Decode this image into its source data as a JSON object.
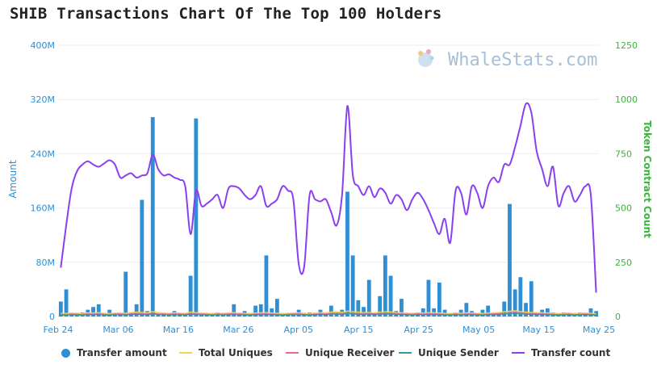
{
  "chart_data": {
    "type": "bar-line-combo",
    "title": "SHIB Transactions Chart Of The Top 100 Holders",
    "watermark": "WhaleStats.com",
    "ylabel_left": "Amount",
    "ylabel_right": "Token Contract Count",
    "yticks_left": [
      "0",
      "80M",
      "160M",
      "240M",
      "320M",
      "400M"
    ],
    "yticks_right": [
      "0",
      "250",
      "500",
      "750",
      "1000",
      "1250"
    ],
    "ylim_left": [
      0,
      400000000
    ],
    "ylim_right": [
      0,
      1250
    ],
    "xticks": [
      "Feb 24",
      "Mar 06",
      "Mar 16",
      "Mar 26",
      "Apr 05",
      "Apr 15",
      "Apr 25",
      "May 05",
      "May 15",
      "May 25"
    ],
    "x_start": "2022-02-24",
    "x_end": "2022-05-25",
    "legend": [
      {
        "label": "Transfer amount",
        "color": "#2f8fd4",
        "kind": "dot"
      },
      {
        "label": "Total Uniques",
        "color": "#f2d64b",
        "kind": "line"
      },
      {
        "label": "Unique Receiver",
        "color": "#e8669a",
        "kind": "line"
      },
      {
        "label": "Unique Sender",
        "color": "#2f9e9a",
        "kind": "line"
      },
      {
        "label": "Transfer count",
        "color": "#8a3ff0",
        "kind": "line"
      }
    ],
    "series": [
      {
        "name": "Transfer amount",
        "axis": "left",
        "type": "bar",
        "color": "#2f8fd4",
        "values_millions": [
          22,
          40,
          4,
          4,
          6,
          10,
          14,
          18,
          4,
          10,
          4,
          4,
          66,
          6,
          18,
          172,
          8,
          294,
          4,
          4,
          4,
          8,
          4,
          4,
          60,
          292,
          4,
          4,
          4,
          6,
          4,
          4,
          18,
          4,
          8,
          4,
          16,
          18,
          90,
          12,
          26,
          4,
          4,
          4,
          10,
          4,
          6,
          4,
          10,
          4,
          16,
          4,
          10,
          184,
          90,
          24,
          14,
          54,
          6,
          30,
          90,
          60,
          8,
          26,
          4,
          4,
          6,
          12,
          54,
          12,
          50,
          10,
          4,
          6,
          10,
          20,
          8,
          4,
          10,
          16,
          4,
          6,
          22,
          166,
          40,
          58,
          20,
          52,
          4,
          10,
          12,
          6,
          4,
          6,
          4,
          4,
          6,
          4,
          12,
          8
        ]
      },
      {
        "name": "Transfer count",
        "axis": "right",
        "type": "line",
        "color": "#8a3ff0",
        "values": [
          225,
          420,
          590,
          670,
          700,
          715,
          700,
          690,
          705,
          720,
          700,
          640,
          650,
          660,
          640,
          650,
          660,
          745,
          680,
          650,
          655,
          640,
          630,
          600,
          380,
          580,
          510,
          520,
          540,
          560,
          500,
          590,
          600,
          590,
          560,
          540,
          560,
          600,
          510,
          520,
          540,
          600,
          580,
          540,
          240,
          230,
          560,
          540,
          530,
          540,
          480,
          420,
          560,
          970,
          650,
          600,
          560,
          600,
          550,
          590,
          570,
          520,
          560,
          540,
          490,
          540,
          570,
          540,
          490,
          430,
          380,
          450,
          340,
          580,
          570,
          470,
          600,
          570,
          500,
          600,
          640,
          620,
          700,
          700,
          780,
          880,
          980,
          940,
          760,
          680,
          600,
          690,
          510,
          570,
          600,
          530,
          560,
          600,
          560,
          110
        ]
      },
      {
        "name": "Total Uniques",
        "axis": "right",
        "type": "line",
        "color": "#f2d64b",
        "values": [
          15,
          14,
          16,
          15,
          14,
          17,
          16,
          18,
          15,
          14,
          16,
          17,
          15,
          18,
          20,
          19,
          17,
          22,
          18,
          16,
          15,
          17,
          16,
          15,
          20,
          18,
          16,
          15,
          14,
          16,
          15,
          17,
          18,
          16,
          15,
          14,
          16,
          17,
          18,
          16,
          15,
          14,
          15,
          16,
          17,
          15,
          14,
          16,
          18,
          17,
          20,
          22,
          19,
          25,
          22,
          20,
          18,
          19,
          17,
          20,
          22,
          21,
          18,
          17,
          16,
          15,
          17,
          16,
          18,
          17,
          16,
          15,
          14,
          16,
          15,
          17,
          16,
          15,
          14,
          16,
          17,
          18,
          22,
          24,
          26,
          23,
          20,
          19,
          18,
          17,
          16,
          15,
          14,
          15,
          16,
          14,
          15,
          16,
          15,
          12
        ]
      },
      {
        "name": "Unique Receiver",
        "axis": "right",
        "type": "line",
        "color": "#e8669a",
        "values": [
          10,
          9,
          11,
          10,
          9,
          12,
          11,
          12,
          10,
          9,
          11,
          12,
          10,
          12,
          14,
          13,
          12,
          15,
          12,
          11,
          10,
          12,
          11,
          10,
          14,
          12,
          11,
          10,
          9,
          11,
          10,
          12,
          12,
          11,
          10,
          9,
          11,
          12,
          12,
          11,
          10,
          9,
          10,
          11,
          12,
          10,
          9,
          11,
          12,
          12,
          14,
          16,
          14,
          18,
          16,
          14,
          13,
          14,
          12,
          14,
          16,
          15,
          13,
          12,
          11,
          10,
          12,
          11,
          13,
          12,
          11,
          10,
          9,
          11,
          10,
          12,
          11,
          10,
          9,
          11,
          12,
          13,
          16,
          18,
          20,
          17,
          14,
          14,
          13,
          12,
          11,
          10,
          9,
          10,
          11,
          9,
          10,
          11,
          10,
          8
        ]
      },
      {
        "name": "Unique Sender",
        "axis": "right",
        "type": "line",
        "color": "#2f9e9a",
        "values": [
          7,
          6,
          8,
          7,
          6,
          8,
          8,
          9,
          7,
          6,
          8,
          8,
          7,
          9,
          10,
          9,
          8,
          11,
          9,
          8,
          7,
          8,
          8,
          7,
          10,
          9,
          8,
          7,
          6,
          8,
          7,
          8,
          9,
          8,
          7,
          6,
          8,
          8,
          9,
          8,
          7,
          6,
          7,
          8,
          8,
          7,
          6,
          8,
          9,
          8,
          10,
          11,
          10,
          12,
          11,
          10,
          9,
          10,
          9,
          10,
          11,
          11,
          9,
          9,
          8,
          7,
          8,
          8,
          9,
          8,
          8,
          7,
          6,
          8,
          7,
          8,
          8,
          7,
          6,
          8,
          8,
          9,
          11,
          12,
          14,
          12,
          10,
          10,
          9,
          9,
          8,
          7,
          6,
          7,
          8,
          6,
          7,
          8,
          7,
          6
        ]
      }
    ]
  }
}
